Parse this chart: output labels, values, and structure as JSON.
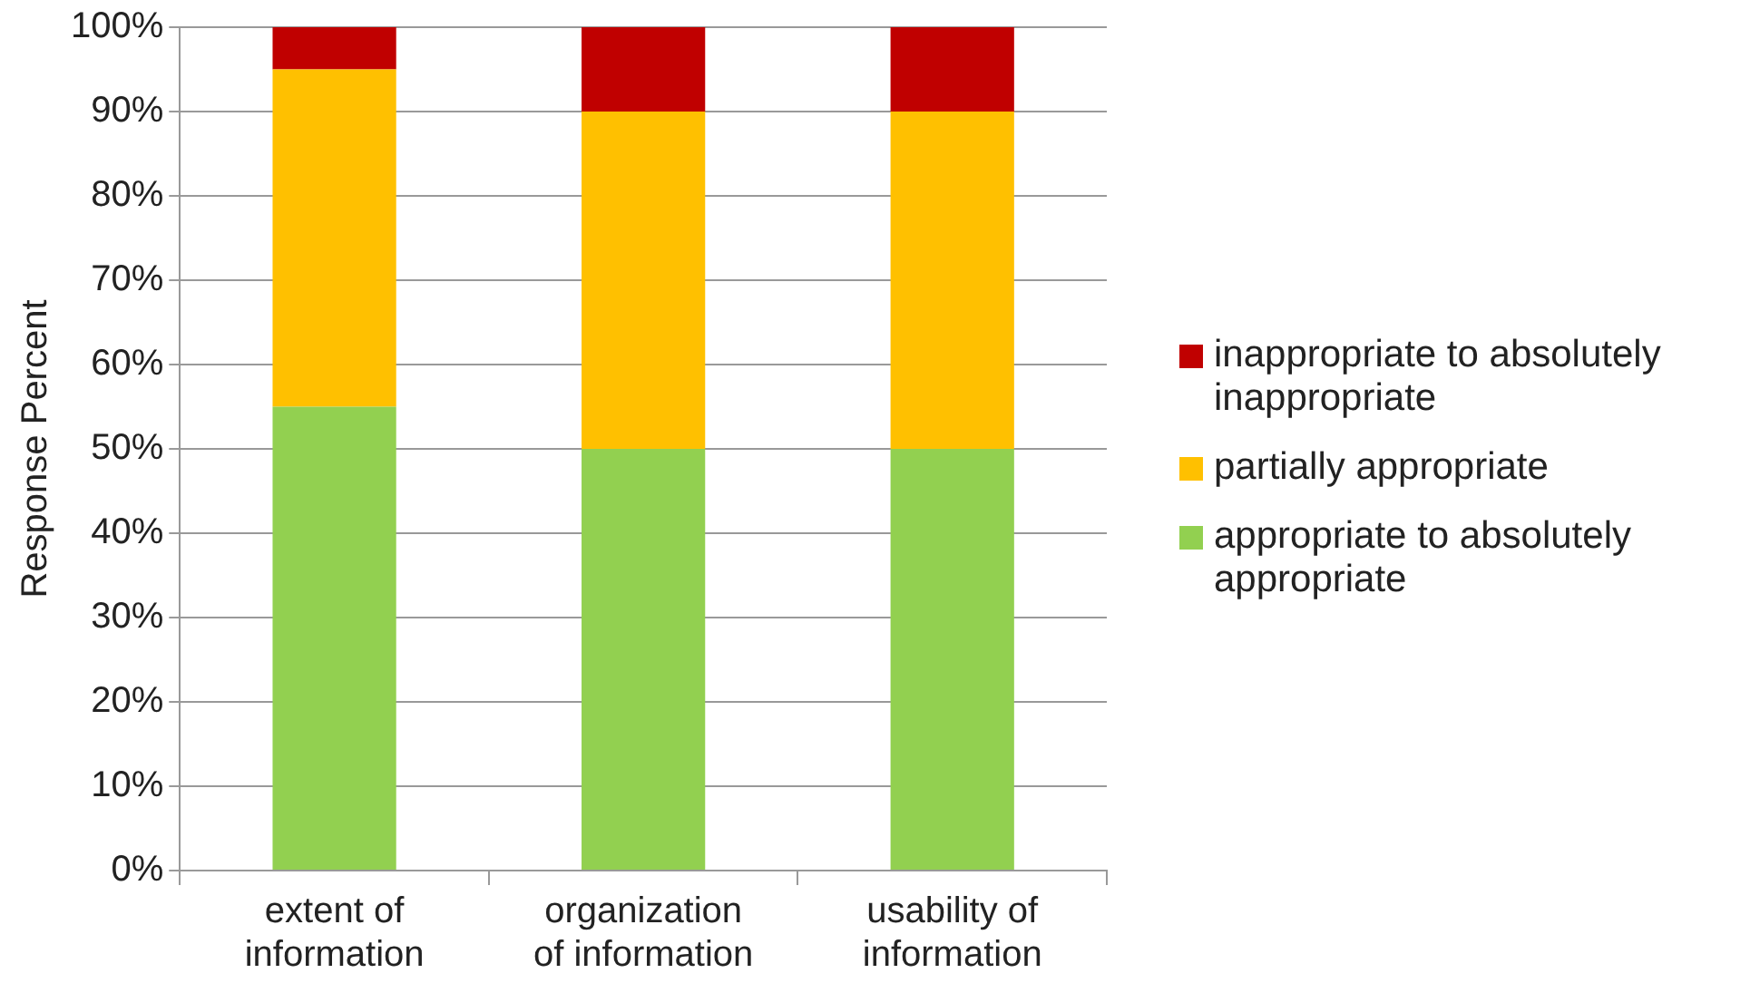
{
  "chart_data": {
    "type": "bar",
    "stacked": true,
    "ylabel": "Response Percent",
    "categories": [
      "extent of information",
      "organization of information",
      "usability of information"
    ],
    "series": [
      {
        "name": "appropriate to absolutely appropriate",
        "color": "#92d050",
        "values": [
          55,
          50,
          50
        ]
      },
      {
        "name": "partially appropriate",
        "color": "#ffc000",
        "values": [
          40,
          40,
          40
        ]
      },
      {
        "name": "inappropriate to absolutely inappropriate",
        "color": "#c00000",
        "values": [
          5,
          10,
          10
        ]
      }
    ],
    "ylim": [
      0,
      100
    ],
    "yticks": [
      {
        "value": 0,
        "label": "0%"
      },
      {
        "value": 10,
        "label": "10%"
      },
      {
        "value": 20,
        "label": "20%"
      },
      {
        "value": 30,
        "label": "30%"
      },
      {
        "value": 40,
        "label": "40%"
      },
      {
        "value": 50,
        "label": "50%"
      },
      {
        "value": 60,
        "label": "60%"
      },
      {
        "value": 70,
        "label": "70%"
      },
      {
        "value": 80,
        "label": "80%"
      },
      {
        "value": 90,
        "label": "90%"
      },
      {
        "value": 100,
        "label": "100%"
      }
    ],
    "grid": "y",
    "legend": "right"
  }
}
